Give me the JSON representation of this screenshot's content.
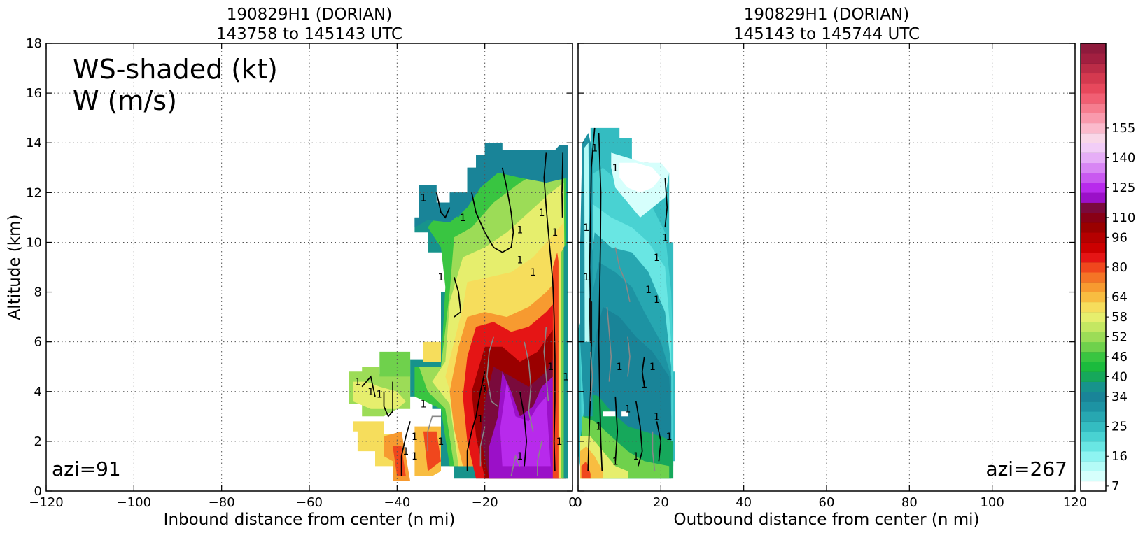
{
  "chart_data": [
    {
      "type": "heatmap",
      "panel": "inbound",
      "title_line1": "190829H1 (DORIAN)",
      "title_line2": "143758 to 145143 UTC",
      "xlabel": "Inbound distance from center (n mi)",
      "ylabel": "Altitude (km)",
      "xlim": [
        -120,
        0
      ],
      "ylim": [
        0,
        18
      ],
      "xticks": [
        -120,
        -100,
        -80,
        -60,
        -40,
        -20,
        0
      ],
      "yticks": [
        0,
        2,
        4,
        6,
        8,
        10,
        12,
        14,
        16,
        18
      ],
      "grid": true,
      "annotation_line1": "WS-shaded (kt)",
      "annotation_line2": "W (m/s)",
      "azimuth_label": "azi=91",
      "w_contour_label": "1"
    },
    {
      "type": "heatmap",
      "panel": "outbound",
      "title_line1": "190829H1 (DORIAN)",
      "title_line2": "145143 to 145744 UTC",
      "xlabel": "Outbound distance from center (n mi)",
      "xlim": [
        0,
        120
      ],
      "ylim": [
        0,
        18
      ],
      "xticks": [
        0,
        20,
        40,
        60,
        80,
        100,
        120
      ],
      "grid": true,
      "azimuth_label": "azi=267",
      "w_contour_label": "1"
    }
  ],
  "colorbar": {
    "tick_labels": [
      "7",
      "16",
      "25",
      "34",
      "40",
      "46",
      "52",
      "58",
      "64",
      "80",
      "96",
      "110",
      "125",
      "140",
      "155"
    ],
    "colors": [
      "#ffffff",
      "#d6fffc",
      "#b4fbf7",
      "#8ef4f1",
      "#69e6e3",
      "#49d2d2",
      "#34bcc1",
      "#27a7b1",
      "#1d93a3",
      "#198498",
      "#17938c",
      "#16a85b",
      "#1bbb3d",
      "#39c541",
      "#6fd14c",
      "#9cdc57",
      "#c4e762",
      "#e6ee6d",
      "#f6dd5c",
      "#f8bd41",
      "#f79a30",
      "#f47426",
      "#f0471d",
      "#e51515",
      "#cc0000",
      "#b50000",
      "#9a0000",
      "#880016",
      "#7a0a3c",
      "#9b10c8",
      "#b82aec",
      "#c959f0",
      "#d886f4",
      "#e6aef7",
      "#f2cdf7",
      "#f9d7e8",
      "#fbbacc",
      "#f99aad",
      "#f67d8f",
      "#f15f73",
      "#e7485c",
      "#d4394f",
      "#bb2c47",
      "#a21f40",
      "#8f1a3c"
    ],
    "tick_indices": [
      0,
      3,
      6,
      9,
      11,
      13,
      15,
      17,
      19,
      22,
      25,
      27,
      30,
      33,
      36
    ]
  }
}
